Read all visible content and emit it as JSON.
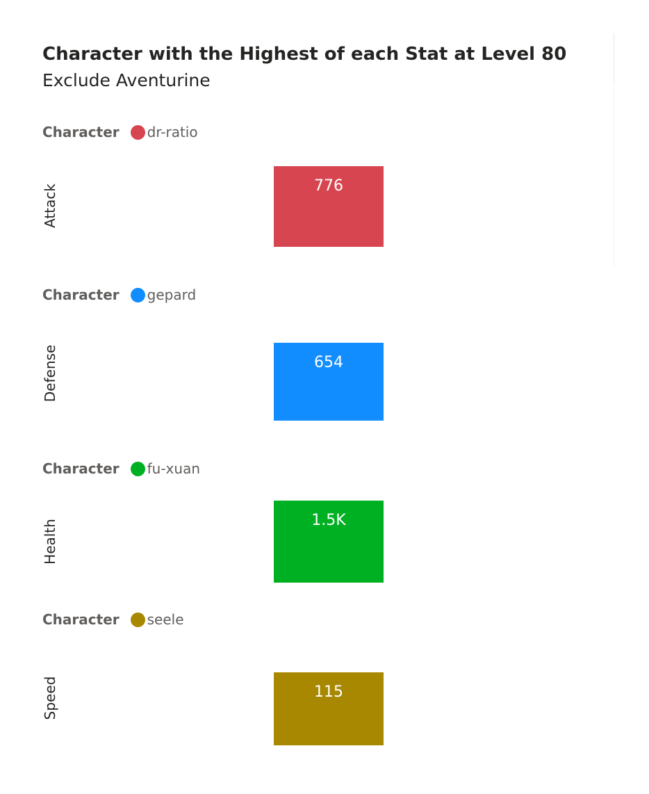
{
  "title": "Character with the Highest of each Stat at Level 80",
  "subtitle": "Exclude Aventurine",
  "legend_title": "Character",
  "chart_data": [
    {
      "type": "bar",
      "category_label": "Attack",
      "series": [
        {
          "name": "dr-ratio",
          "values": [
            776
          ],
          "data_label": "776",
          "color": "#D64550"
        }
      ],
      "legend": {
        "title": "Character",
        "entries": [
          "dr-ratio"
        ],
        "placement": "top-left"
      }
    },
    {
      "type": "bar",
      "category_label": "Defense",
      "series": [
        {
          "name": "gepard",
          "values": [
            654
          ],
          "data_label": "654",
          "color": "#118DFF"
        }
      ],
      "legend": {
        "title": "Character",
        "entries": [
          "gepard"
        ],
        "placement": "top-left"
      }
    },
    {
      "type": "bar",
      "category_label": "Health",
      "series": [
        {
          "name": "fu-xuan",
          "values": [
            1500
          ],
          "data_label": "1.5K",
          "color": "#00B023"
        }
      ],
      "legend": {
        "title": "Character",
        "entries": [
          "fu-xuan"
        ],
        "placement": "top-left"
      }
    },
    {
      "type": "bar",
      "category_label": "Speed",
      "series": [
        {
          "name": "seele",
          "values": [
            115
          ],
          "data_label": "115",
          "color": "#A88800"
        }
      ],
      "legend": {
        "title": "Character",
        "entries": [
          "seele"
        ],
        "placement": "top-left"
      }
    }
  ]
}
